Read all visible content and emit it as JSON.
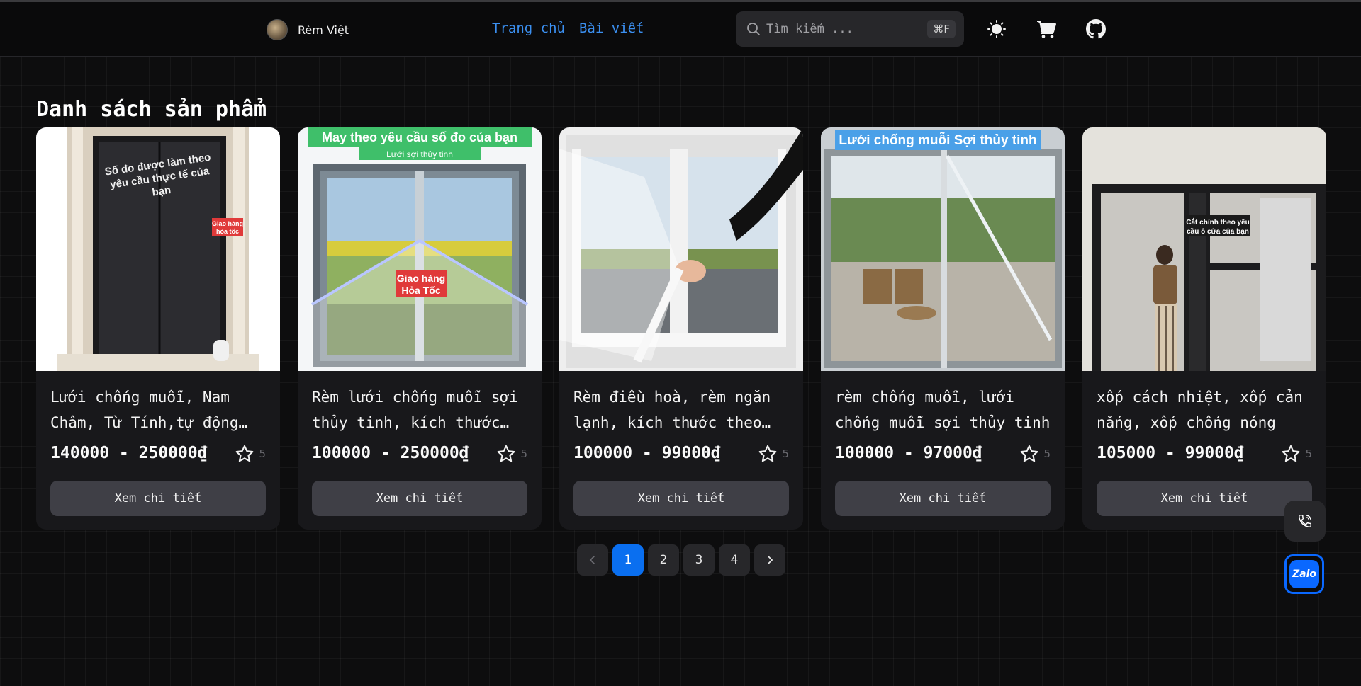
{
  "header": {
    "brand_name": "Rèm Việt",
    "nav": [
      {
        "label": "Trang chủ"
      },
      {
        "label": "Bài viết"
      }
    ],
    "search": {
      "placeholder": "Tìm kiếm ...",
      "shortcut": "⌘F"
    },
    "icons": [
      "theme-toggle-sun-icon",
      "cart-icon",
      "github-icon"
    ]
  },
  "main": {
    "title": "Danh sách sản phẩm",
    "products": [
      {
        "title": "Lưới chống muỗi, Nam Châm, Từ Tính,tự động đóng, kích thước theo yêu cầu",
        "price": "140000 - 250000₫",
        "rating": "5",
        "button": "Xem chi tiết",
        "image_text": [
          "Số đo được làm theo",
          "yêu cầu thực tế của",
          "bạn"
        ],
        "image_badge": [
          "Giao hàng",
          "hỏa  tốc"
        ]
      },
      {
        "title": "Rèm lưới chống muỗi sợi thủy tinh, kích thước theo yêu cầu",
        "price": "100000 - 250000₫",
        "rating": "5",
        "button": "Xem chi tiết",
        "image_banner": "May theo yêu cầu số đo của bạn",
        "image_sub": "Lưới sợi thủy tinh",
        "image_badge": [
          "Giao hàng",
          "Hỏa  Tốc"
        ]
      },
      {
        "title": "Rèm điều hoà, rèm ngăn lạnh, kích thước theo yêu cầu",
        "price": "100000 - 99000₫",
        "rating": "5",
        "button": "Xem chi tiết"
      },
      {
        "title": "rèm chống muỗi, lưới chống muỗi sợi thủy tinh",
        "price": "100000 - 97000₫",
        "rating": "5",
        "button": "Xem chi tiết",
        "image_banner": "Lưới chống muỗi Sợi thủy tinh"
      },
      {
        "title": "xốp cách nhiệt, xốp cản nắng, xốp chống nóng",
        "price": "105000 - 99000₫",
        "rating": "5",
        "button": "Xem chi tiết",
        "image_text": [
          "Cắt chỉnh theo yêu",
          "cầu ô cửa của bạn"
        ]
      }
    ]
  },
  "pagination": {
    "prev_icon": "chevron-left-icon",
    "pages": [
      "1",
      "2",
      "3",
      "4"
    ],
    "active_page": "1",
    "next_icon": "chevron-right-icon"
  },
  "floating": {
    "zalo_label": "Zalo",
    "phone_icon": "phone-icon"
  },
  "colors": {
    "link": "#3b8ff0",
    "active_page": "#0a6ff0",
    "zalo": "#0a68ff"
  }
}
